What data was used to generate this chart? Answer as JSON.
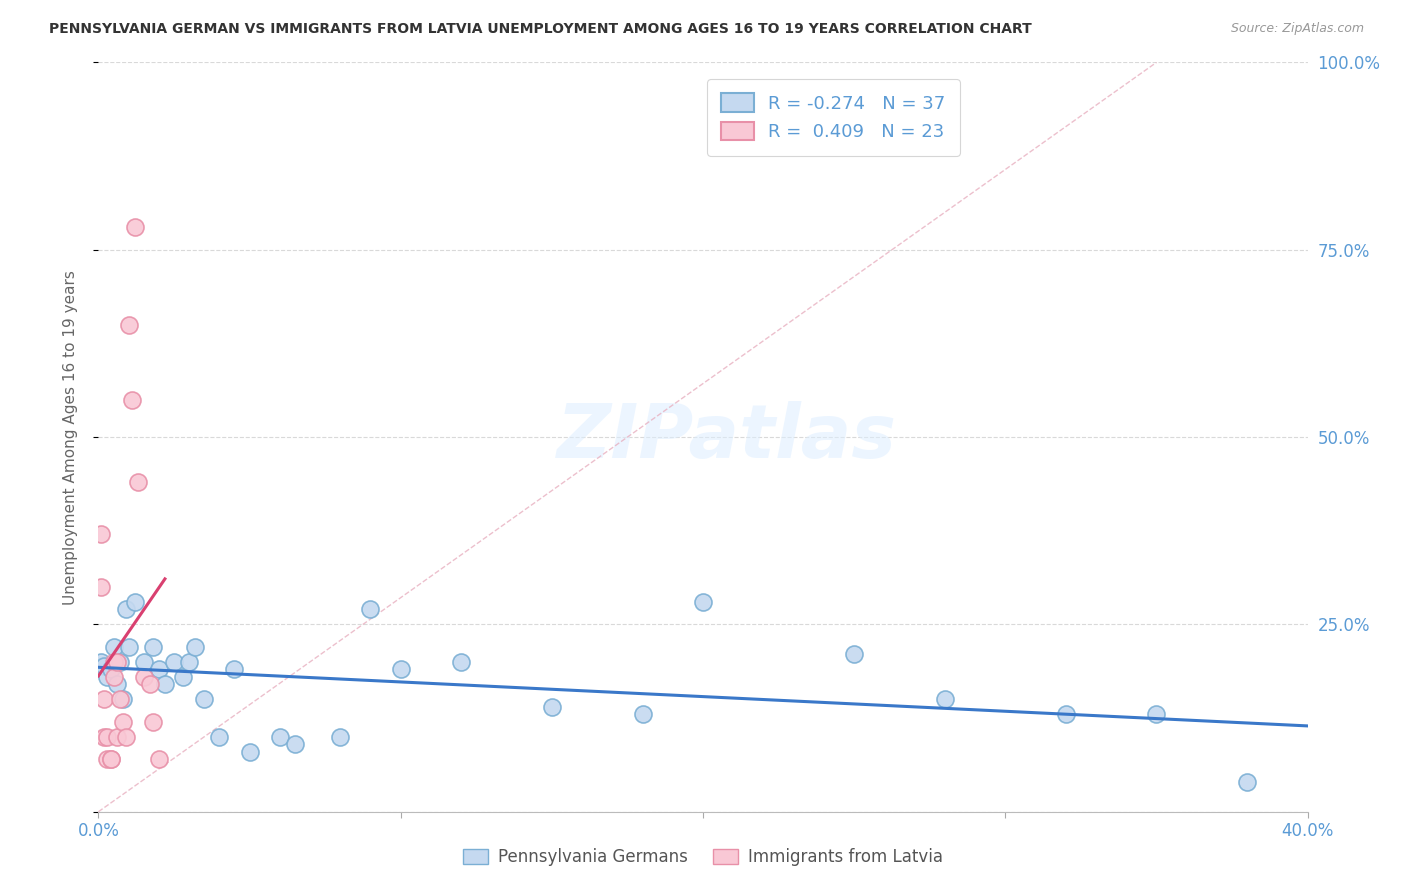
{
  "title": "PENNSYLVANIA GERMAN VS IMMIGRANTS FROM LATVIA UNEMPLOYMENT AMONG AGES 16 TO 19 YEARS CORRELATION CHART",
  "source": "Source: ZipAtlas.com",
  "ylabel": "Unemployment Among Ages 16 to 19 years",
  "blue_label": "Pennsylvania Germans",
  "pink_label": "Immigrants from Latvia",
  "blue_R": -0.274,
  "blue_N": 37,
  "pink_R": 0.409,
  "pink_N": 23,
  "blue_scatter_x": [
    0.001,
    0.002,
    0.003,
    0.004,
    0.005,
    0.006,
    0.007,
    0.008,
    0.009,
    0.01,
    0.012,
    0.015,
    0.018,
    0.02,
    0.022,
    0.025,
    0.028,
    0.03,
    0.032,
    0.035,
    0.04,
    0.045,
    0.05,
    0.06,
    0.065,
    0.08,
    0.09,
    0.1,
    0.12,
    0.15,
    0.18,
    0.2,
    0.25,
    0.28,
    0.32,
    0.35,
    0.38
  ],
  "blue_scatter_y": [
    0.2,
    0.195,
    0.18,
    0.19,
    0.22,
    0.17,
    0.2,
    0.15,
    0.27,
    0.22,
    0.28,
    0.2,
    0.22,
    0.19,
    0.17,
    0.2,
    0.18,
    0.2,
    0.22,
    0.15,
    0.1,
    0.19,
    0.08,
    0.1,
    0.09,
    0.1,
    0.27,
    0.19,
    0.2,
    0.14,
    0.13,
    0.28,
    0.21,
    0.15,
    0.13,
    0.13,
    0.04
  ],
  "pink_scatter_x": [
    0.001,
    0.001,
    0.002,
    0.002,
    0.003,
    0.003,
    0.004,
    0.004,
    0.005,
    0.005,
    0.006,
    0.006,
    0.007,
    0.008,
    0.009,
    0.01,
    0.011,
    0.012,
    0.013,
    0.015,
    0.017,
    0.018,
    0.02
  ],
  "pink_scatter_y": [
    0.37,
    0.3,
    0.15,
    0.1,
    0.1,
    0.07,
    0.07,
    0.07,
    0.2,
    0.18,
    0.2,
    0.1,
    0.15,
    0.12,
    0.1,
    0.65,
    0.55,
    0.78,
    0.44,
    0.18,
    0.17,
    0.12,
    0.07
  ],
  "background_color": "#ffffff",
  "blue_face_color": "#c5d9f0",
  "blue_edge_color": "#7bafd4",
  "pink_face_color": "#f9c8d5",
  "pink_edge_color": "#e890a8",
  "blue_line_color": "#3a78c9",
  "pink_line_color": "#d94070",
  "diag_line_color": "#e8b0c0",
  "grid_color": "#d0d0d0",
  "xlim": [
    0.0,
    0.4
  ],
  "ylim": [
    0.0,
    1.0
  ],
  "right_yticklabels": [
    "",
    "25.0%",
    "50.0%",
    "75.0%",
    "100.0%"
  ],
  "right_ytick_color": "#5b9bd5"
}
